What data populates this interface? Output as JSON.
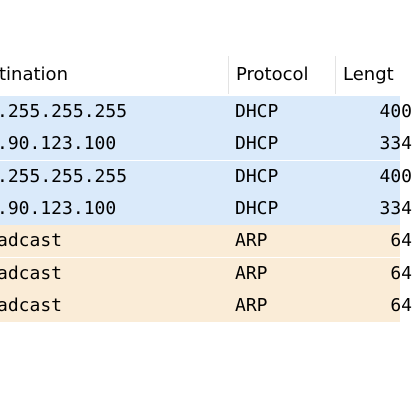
{
  "header": {
    "columns": [
      "tination",
      "Protocol",
      "Lengt"
    ]
  },
  "rows": [
    {
      "destination": ".255.255.255",
      "protocol": "DHCP",
      "length": "400",
      "color": "#daeafa"
    },
    {
      "destination": ".90.123.100",
      "protocol": "DHCP",
      "length": "334",
      "color": "#daeafa"
    },
    {
      "destination": ".255.255.255",
      "protocol": "DHCP",
      "length": "400",
      "color": "#daeafa"
    },
    {
      "destination": ".90.123.100",
      "protocol": "DHCP",
      "length": "334",
      "color": "#daeafa"
    },
    {
      "destination": "adcast",
      "protocol": "ARP",
      "length": "64",
      "color": "#faecd7"
    },
    {
      "destination": "adcast",
      "protocol": "ARP",
      "length": "64",
      "color": "#faecd7"
    },
    {
      "destination": "adcast",
      "protocol": "ARP",
      "length": "64",
      "color": "#faecd7"
    }
  ]
}
